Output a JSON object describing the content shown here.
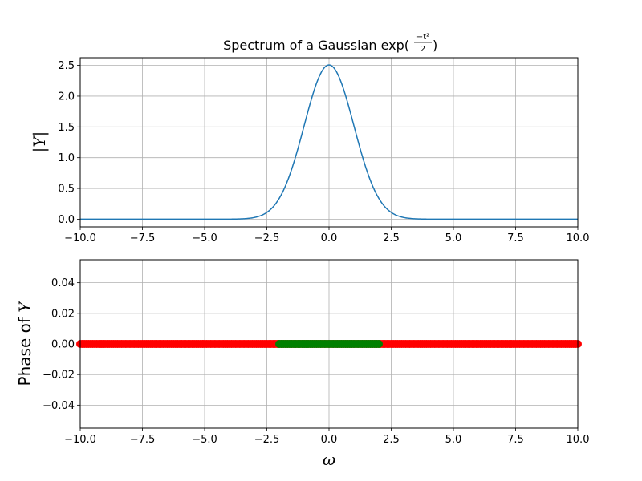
{
  "chart_data": [
    {
      "type": "line",
      "title_text": "Spectrum of a Gaussian exp(",
      "title_math": {
        "numerator": "−t²",
        "denominator": "2"
      },
      "title_close": ")",
      "ylabel": "|Y|",
      "xlabel": "",
      "xlim": [
        -10,
        10
      ],
      "ylim": [
        -0.125,
        2.625
      ],
      "xticks": [
        -10,
        -7.5,
        -5,
        -2.5,
        0,
        2.5,
        5,
        7.5,
        10
      ],
      "xtick_labels": [
        "−10.0",
        "−7.5",
        "−5.0",
        "−2.5",
        "0.0",
        "2.5",
        "5.0",
        "7.5",
        "10.0"
      ],
      "yticks": [
        0,
        0.5,
        1,
        1.5,
        2,
        2.5
      ],
      "ytick_labels": [
        "0.0",
        "0.5",
        "1.0",
        "1.5",
        "2.0",
        "2.5"
      ],
      "grid": true,
      "series": [
        {
          "function": "sqrt(2*pi)*exp(-w^2/2)",
          "x_range": [
            -10,
            10
          ],
          "peak": 2.5066,
          "color": "#1f77b4"
        }
      ]
    },
    {
      "type": "scatter",
      "ylabel_text": "Phase of ",
      "ylabel_math": "Y",
      "xlabel": "ω",
      "xlim": [
        -10,
        10
      ],
      "ylim": [
        -0.055,
        0.055
      ],
      "xticks": [
        -10,
        -7.5,
        -5,
        -2.5,
        0,
        2.5,
        5,
        7.5,
        10
      ],
      "xtick_labels": [
        "−10.0",
        "−7.5",
        "−5.0",
        "−2.5",
        "0.0",
        "2.5",
        "5.0",
        "7.5",
        "10.0"
      ],
      "yticks": [
        -0.04,
        -0.02,
        0,
        0.02,
        0.04
      ],
      "ytick_labels": [
        "−0.04",
        "−0.02",
        "0.00",
        "0.02",
        "0.04"
      ],
      "grid": true,
      "series": [
        {
          "x_range": [
            -10,
            10
          ],
          "y": 0.0,
          "marker": "o",
          "color": "#ff0000"
        },
        {
          "x_range": [
            -2,
            2
          ],
          "y": 0.0,
          "marker": "o",
          "color": "#008000"
        }
      ]
    }
  ]
}
